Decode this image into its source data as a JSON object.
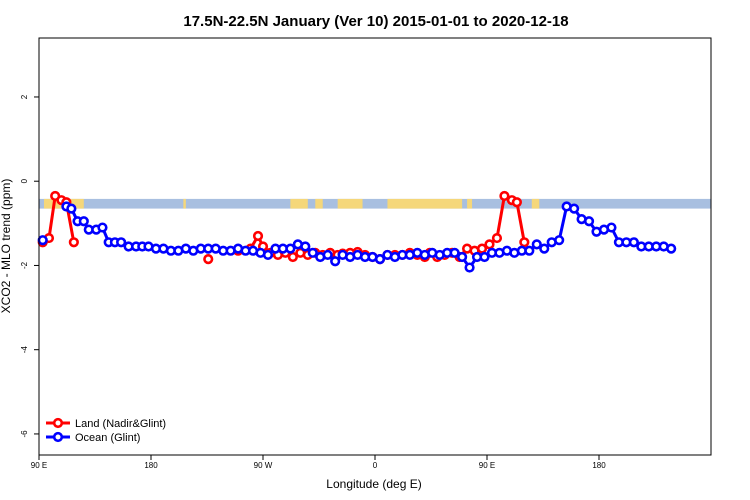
{
  "chart_data": {
    "type": "line",
    "title": "17.5N-22.5N January (Ver 10)   2015-01-01 to 2020-12-18",
    "xlabel": "Longitude (deg E)",
    "ylabel": "XCO2 - MLO trend (ppm)",
    "xlim": [
      -90,
      180
    ],
    "ylim": [
      -6,
      3
    ],
    "x_ticks": [
      {
        "value": -90,
        "label": "90 E"
      },
      {
        "value": -45,
        "label": "180"
      },
      {
        "value": 0,
        "label": "90 W"
      },
      {
        "value": 45,
        "label": "0"
      },
      {
        "value": 90,
        "label": "90 E"
      },
      {
        "value": 135,
        "label": "180"
      }
    ],
    "y_ticks": [
      {
        "value": -6,
        "label": "-6"
      },
      {
        "value": -4,
        "label": "-4"
      },
      {
        "value": -2,
        "label": "-2"
      },
      {
        "value": 0,
        "label": "0"
      },
      {
        "value": 2,
        "label": "2"
      }
    ],
    "grid": false,
    "legend_position": "bottom-left",
    "land_mask": {
      "y_range": [
        -0.65,
        -0.42
      ],
      "ocean_color": "#a8bfe0",
      "land_color": "#f5d77a",
      "land_segments": [
        [
          -88,
          -84
        ],
        [
          -84,
          -72
        ],
        [
          -32,
          -31
        ],
        [
          11,
          18
        ],
        [
          21,
          24
        ],
        [
          30,
          40
        ],
        [
          50,
          80
        ],
        [
          82,
          84
        ],
        [
          108,
          111
        ]
      ]
    },
    "series": [
      {
        "name": "Land (Nadir&Glint)",
        "color": "#ff0000",
        "segments": [
          [
            [
              -88.5,
              -1.45
            ],
            [
              -86,
              -1.35
            ],
            [
              -83.5,
              -0.35
            ],
            [
              -81,
              -0.45
            ],
            [
              -79,
              -0.5
            ],
            [
              -76,
              -1.45
            ]
          ],
          [
            [
              -22,
              -1.85
            ]
          ],
          [
            [
              -10,
              -1.65
            ],
            [
              -5,
              -1.6
            ],
            [
              -2,
              -1.3
            ],
            [
              0,
              -1.55
            ],
            [
              3,
              -1.7
            ],
            [
              6,
              -1.75
            ],
            [
              9,
              -1.7
            ],
            [
              12,
              -1.8
            ],
            [
              15,
              -1.7
            ],
            [
              18,
              -1.75
            ],
            [
              21,
              -1.7
            ],
            [
              24,
              -1.75
            ],
            [
              27,
              -1.7
            ],
            [
              30,
              -1.75
            ],
            [
              32,
              -1.72
            ],
            [
              35,
              -1.7
            ],
            [
              38,
              -1.68
            ],
            [
              41,
              -1.75
            ],
            [
              44,
              -1.8
            ],
            [
              47,
              -1.85
            ],
            [
              50,
              -1.75
            ],
            [
              53,
              -1.75
            ],
            [
              56,
              -1.75
            ],
            [
              59,
              -1.7
            ],
            [
              62,
              -1.75
            ],
            [
              65,
              -1.8
            ],
            [
              67,
              -1.7
            ],
            [
              70,
              -1.8
            ],
            [
              73,
              -1.75
            ],
            [
              76,
              -1.7
            ],
            [
              79,
              -1.8
            ],
            [
              82,
              -1.6
            ],
            [
              85,
              -1.65
            ],
            [
              88,
              -1.6
            ],
            [
              91,
              -1.5
            ],
            [
              94,
              -1.35
            ],
            [
              97,
              -0.35
            ],
            [
              100,
              -0.45
            ],
            [
              102,
              -0.5
            ],
            [
              105,
              -1.45
            ]
          ]
        ]
      },
      {
        "name": "Ocean (Glint)",
        "color": "#0000ff",
        "segments": [
          [
            [
              -88.5,
              -1.4
            ]
          ],
          [
            [
              -79,
              -0.6
            ],
            [
              -77,
              -0.65
            ],
            [
              -74.5,
              -0.95
            ],
            [
              -72,
              -0.95
            ],
            [
              -70,
              -1.15
            ],
            [
              -67,
              -1.15
            ],
            [
              -64.5,
              -1.1
            ],
            [
              -62,
              -1.45
            ],
            [
              -59.5,
              -1.45
            ],
            [
              -57,
              -1.45
            ],
            [
              -54,
              -1.55
            ],
            [
              -51,
              -1.55
            ],
            [
              -48.5,
              -1.55
            ],
            [
              -46,
              -1.55
            ],
            [
              -43,
              -1.6
            ],
            [
              -40,
              -1.6
            ],
            [
              -37,
              -1.65
            ],
            [
              -34,
              -1.65
            ],
            [
              -31,
              -1.6
            ],
            [
              -28,
              -1.65
            ],
            [
              -25,
              -1.6
            ],
            [
              -22,
              -1.6
            ],
            [
              -19,
              -1.6
            ],
            [
              -16,
              -1.65
            ],
            [
              -13,
              -1.65
            ],
            [
              -10,
              -1.6
            ],
            [
              -7,
              -1.65
            ],
            [
              -4,
              -1.65
            ],
            [
              -1,
              -1.7
            ],
            [
              2,
              -1.75
            ],
            [
              5,
              -1.6
            ],
            [
              8,
              -1.6
            ],
            [
              11,
              -1.6
            ],
            [
              14,
              -1.5
            ],
            [
              17,
              -1.55
            ],
            [
              20,
              -1.7
            ],
            [
              23,
              -1.8
            ],
            [
              26,
              -1.75
            ],
            [
              29,
              -1.9
            ],
            [
              32,
              -1.75
            ],
            [
              35,
              -1.8
            ],
            [
              38,
              -1.75
            ],
            [
              41,
              -1.8
            ],
            [
              44,
              -1.8
            ],
            [
              47,
              -1.85
            ],
            [
              50,
              -1.75
            ],
            [
              53,
              -1.8
            ],
            [
              56,
              -1.75
            ],
            [
              59,
              -1.75
            ],
            [
              62,
              -1.7
            ],
            [
              65,
              -1.75
            ],
            [
              68,
              -1.7
            ],
            [
              71,
              -1.75
            ],
            [
              74,
              -1.7
            ],
            [
              77,
              -1.7
            ],
            [
              80,
              -1.8
            ],
            [
              83,
              -2.05
            ],
            [
              86,
              -1.8
            ],
            [
              89,
              -1.8
            ],
            [
              92,
              -1.7
            ],
            [
              95,
              -1.7
            ],
            [
              98,
              -1.65
            ],
            [
              101,
              -1.7
            ],
            [
              104,
              -1.65
            ],
            [
              107,
              -1.65
            ],
            [
              110,
              -1.5
            ],
            [
              113,
              -1.6
            ],
            [
              116,
              -1.45
            ],
            [
              119,
              -1.4
            ],
            [
              122,
              -0.6
            ],
            [
              125,
              -0.65
            ],
            [
              128,
              -0.9
            ],
            [
              131,
              -0.95
            ],
            [
              134,
              -1.2
            ],
            [
              137,
              -1.15
            ],
            [
              140,
              -1.1
            ],
            [
              143,
              -1.45
            ],
            [
              146,
              -1.45
            ],
            [
              149,
              -1.45
            ],
            [
              152,
              -1.55
            ],
            [
              155,
              -1.55
            ],
            [
              158,
              -1.55
            ],
            [
              161,
              -1.55
            ],
            [
              164,
              -1.6
            ]
          ]
        ]
      }
    ]
  }
}
